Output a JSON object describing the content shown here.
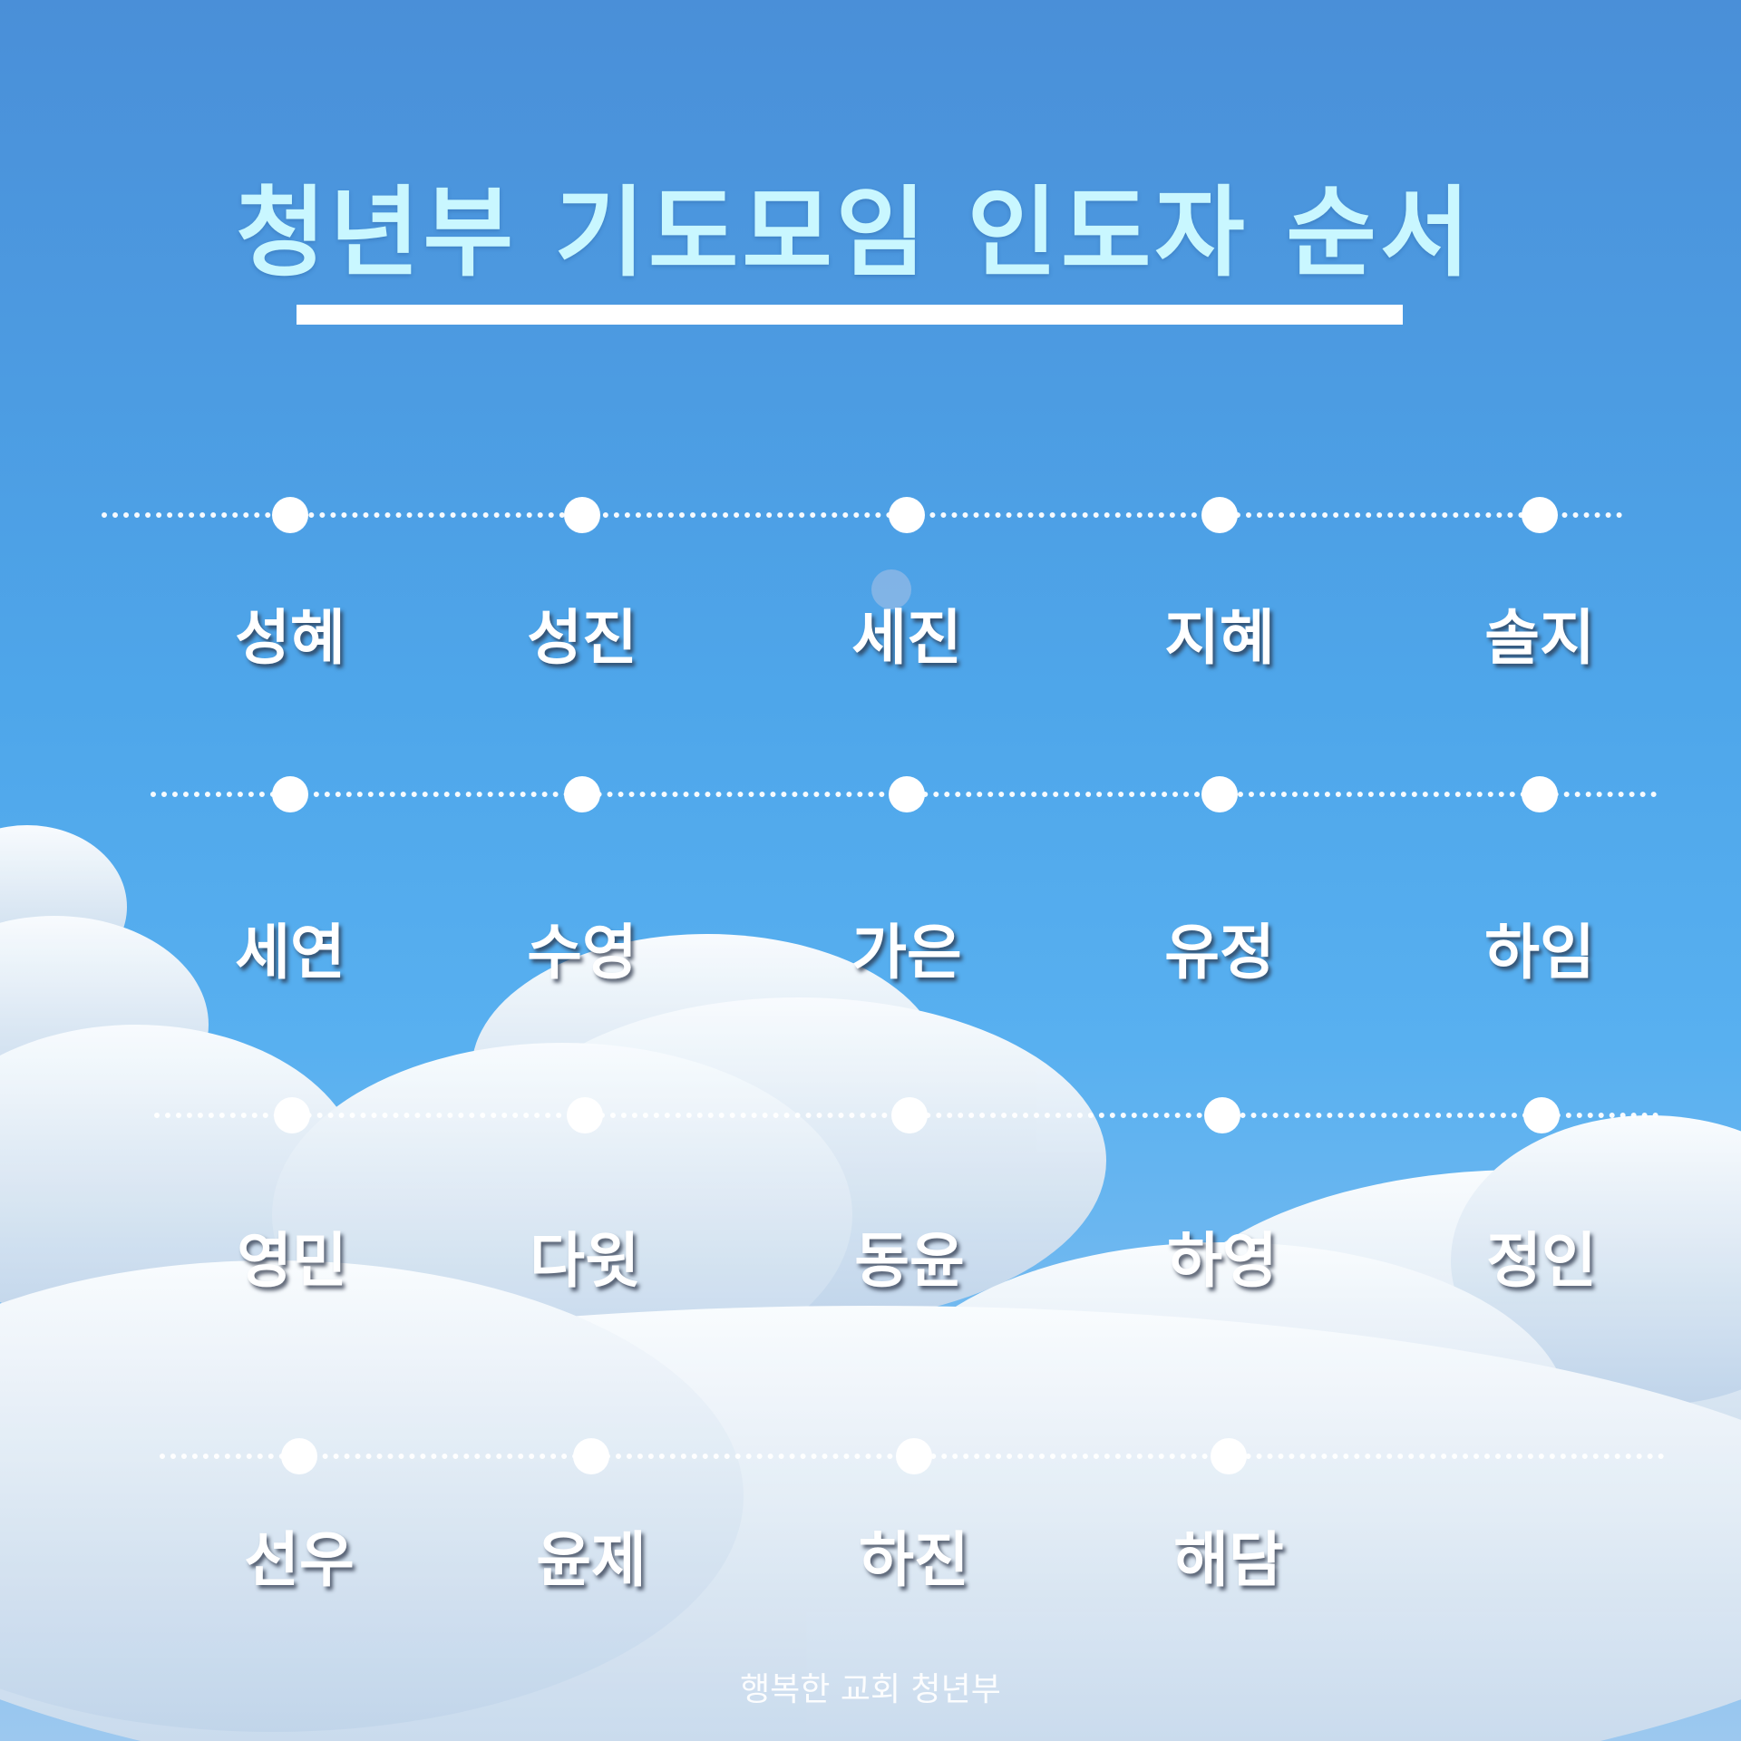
{
  "title": "청년부 기도모임 인도자 순서",
  "rows": [
    {
      "names": [
        "성혜",
        "성진",
        "세진",
        "지혜",
        "솔지"
      ]
    },
    {
      "names": [
        "세연",
        "수영",
        "가은",
        "유정",
        "하임"
      ]
    },
    {
      "names": [
        "영민",
        "다윗",
        "동윤",
        "하영",
        "정인"
      ]
    },
    {
      "names": [
        "선우",
        "윤제",
        "하진",
        "해담"
      ]
    }
  ],
  "footer": "행복한 교회 청년부",
  "colors": {
    "sky_top": "#4a8fd8",
    "sky_mid": "#4ea6ea",
    "title": "#c9f7ff",
    "accent": "#ffffff"
  }
}
